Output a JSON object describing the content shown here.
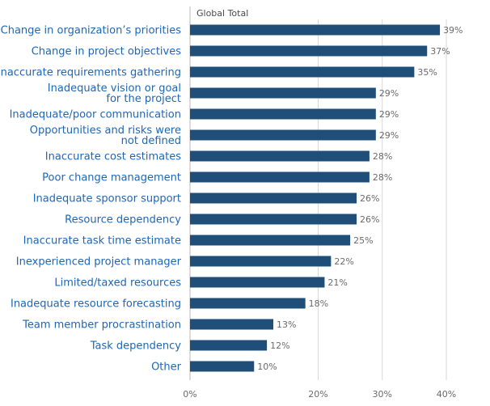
{
  "colors": {
    "bar": "#1f4e79",
    "label_text": "#1f66b2",
    "value_text": "#6a6a6a",
    "axis": "#b9b9b9",
    "grid": "#d8d8d8"
  },
  "chart_data": {
    "type": "bar",
    "orientation": "horizontal",
    "series_label": "Global Total",
    "categories": [
      "Change in organization’s priorities",
      "Change in project objectives",
      "Inaccurate requirements gathering",
      "Inadequate vision or goal\nfor the project",
      "Inadequate/poor communication",
      "Opportunities and risks were\nnot defined",
      "Inaccurate cost estimates",
      "Poor change management",
      "Inadequate sponsor support",
      "Resource dependency",
      "Inaccurate task time estimate",
      "Inexperienced project manager",
      "Limited/taxed resources",
      "Inadequate resource forecasting",
      "Team member procrastination",
      "Task dependency",
      "Other"
    ],
    "values": [
      39,
      37,
      35,
      29,
      29,
      29,
      28,
      28,
      26,
      26,
      25,
      22,
      21,
      18,
      13,
      12,
      10
    ],
    "value_labels": [
      "39%",
      "37%",
      "35%",
      "29%",
      "29%",
      "29%",
      "28%",
      "28%",
      "26%",
      "26%",
      "25%",
      "22%",
      "21%",
      "18%",
      "13%",
      "12%",
      "10%"
    ],
    "x_ticks": [
      0,
      20,
      30,
      40
    ],
    "x_tick_labels": [
      "0%",
      "20%",
      "30%",
      "40%"
    ],
    "xlim": [
      0,
      40
    ],
    "grid": true,
    "legend": false
  }
}
